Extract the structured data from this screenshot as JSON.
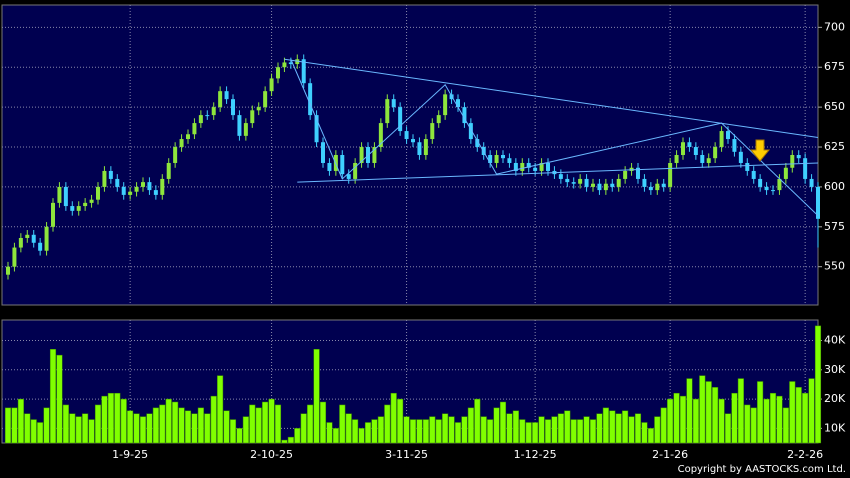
{
  "chart_data": [
    {
      "type": "candlestick",
      "categories": [
        null,
        null,
        null,
        null,
        null,
        null,
        null,
        null,
        null,
        null,
        null,
        null,
        null,
        null,
        null,
        null,
        null,
        null,
        null,
        "1-9-25",
        null,
        null,
        null,
        null,
        null,
        null,
        null,
        null,
        null,
        null,
        null,
        null,
        null,
        null,
        null,
        null,
        null,
        null,
        null,
        null,
        null,
        "2-10-25",
        null,
        null,
        null,
        null,
        null,
        null,
        null,
        null,
        null,
        null,
        null,
        null,
        null,
        null,
        null,
        null,
        null,
        null,
        null,
        null,
        "3-11-25",
        null,
        null,
        null,
        null,
        null,
        null,
        null,
        null,
        null,
        null,
        null,
        null,
        null,
        null,
        null,
        null,
        null,
        null,
        null,
        "1-12-25",
        null,
        null,
        null,
        null,
        null,
        null,
        null,
        null,
        null,
        null,
        null,
        null,
        null,
        null,
        null,
        null,
        null,
        null,
        null,
        null,
        "2-1-26",
        null,
        null,
        null,
        null,
        null,
        null,
        null,
        null,
        null,
        null,
        null,
        null,
        null,
        null,
        null,
        null,
        null,
        null,
        null,
        null,
        "2-2-26",
        null,
        null
      ],
      "open": [
        545,
        550,
        562,
        568,
        570,
        565,
        560,
        575,
        590,
        600,
        588,
        585,
        588,
        590,
        592,
        600,
        610,
        605,
        600,
        595,
        597,
        600,
        603,
        598,
        595,
        605,
        615,
        625,
        630,
        633,
        640,
        645,
        645,
        650,
        660,
        655,
        645,
        632,
        640,
        648,
        650,
        660,
        668,
        675,
        678,
        677,
        680,
        665,
        645,
        628,
        615,
        610,
        620,
        608,
        605,
        615,
        625,
        615,
        625,
        640,
        655,
        650,
        635,
        630,
        628,
        620,
        630,
        640,
        645,
        658,
        655,
        650,
        640,
        630,
        625,
        620,
        615,
        620,
        618,
        615,
        610,
        615,
        612,
        610,
        615,
        610,
        608,
        605,
        603,
        602,
        605,
        600,
        602,
        598,
        602,
        600,
        605,
        610,
        612,
        605,
        600,
        598,
        602,
        600,
        615,
        620,
        628,
        625,
        620,
        615,
        618,
        625,
        635,
        630,
        622,
        615,
        610,
        605,
        600,
        598,
        598,
        605,
        612,
        620,
        618,
        605,
        600
      ],
      "high": [
        553,
        565,
        571,
        573,
        573,
        568,
        578,
        593,
        603,
        603,
        591,
        591,
        593,
        595,
        603,
        613,
        613,
        608,
        603,
        600,
        603,
        606,
        606,
        601,
        608,
        618,
        628,
        633,
        636,
        643,
        648,
        648,
        653,
        663,
        663,
        658,
        648,
        643,
        651,
        653,
        663,
        671,
        678,
        681,
        681,
        683,
        683,
        668,
        648,
        631,
        618,
        623,
        623,
        611,
        618,
        628,
        628,
        628,
        643,
        658,
        658,
        653,
        638,
        633,
        631,
        633,
        643,
        648,
        661,
        661,
        658,
        653,
        643,
        633,
        628,
        623,
        623,
        623,
        621,
        618,
        618,
        618,
        615,
        618,
        618,
        613,
        611,
        608,
        606,
        608,
        608,
        605,
        605,
        605,
        605,
        608,
        613,
        615,
        615,
        608,
        603,
        605,
        605,
        618,
        623,
        631,
        631,
        628,
        623,
        621,
        628,
        638,
        638,
        633,
        625,
        618,
        613,
        608,
        603,
        601,
        608,
        615,
        623,
        623,
        621,
        608,
        603
      ],
      "low": [
        542,
        547,
        559,
        565,
        562,
        557,
        557,
        572,
        587,
        585,
        582,
        582,
        585,
        587,
        589,
        597,
        602,
        597,
        592,
        592,
        594,
        597,
        595,
        592,
        592,
        602,
        612,
        622,
        627,
        630,
        637,
        642,
        642,
        647,
        652,
        642,
        629,
        629,
        637,
        645,
        647,
        657,
        665,
        672,
        674,
        674,
        662,
        642,
        625,
        612,
        607,
        607,
        605,
        602,
        602,
        612,
        612,
        612,
        622,
        637,
        647,
        632,
        627,
        625,
        617,
        617,
        627,
        637,
        642,
        652,
        647,
        637,
        627,
        622,
        617,
        612,
        612,
        615,
        612,
        607,
        607,
        609,
        607,
        607,
        607,
        605,
        602,
        600,
        599,
        599,
        597,
        597,
        595,
        595,
        597,
        597,
        602,
        607,
        602,
        597,
        595,
        595,
        597,
        597,
        612,
        617,
        622,
        617,
        612,
        612,
        615,
        622,
        627,
        619,
        612,
        607,
        602,
        597,
        595,
        595,
        595,
        602,
        609,
        615,
        602,
        597,
        562
      ],
      "close": [
        550,
        562,
        568,
        570,
        565,
        560,
        575,
        590,
        600,
        588,
        585,
        588,
        590,
        592,
        600,
        610,
        605,
        600,
        595,
        597,
        600,
        603,
        598,
        595,
        605,
        615,
        625,
        630,
        633,
        640,
        645,
        645,
        650,
        660,
        655,
        645,
        632,
        640,
        648,
        650,
        660,
        668,
        675,
        678,
        677,
        680,
        665,
        645,
        628,
        615,
        610,
        620,
        608,
        605,
        615,
        625,
        615,
        625,
        640,
        655,
        650,
        635,
        630,
        628,
        620,
        630,
        640,
        645,
        658,
        655,
        650,
        640,
        630,
        625,
        620,
        615,
        620,
        618,
        615,
        610,
        615,
        612,
        610,
        615,
        610,
        608,
        605,
        603,
        602,
        605,
        600,
        602,
        598,
        602,
        600,
        605,
        610,
        612,
        605,
        600,
        598,
        602,
        600,
        615,
        620,
        628,
        625,
        620,
        615,
        618,
        625,
        635,
        630,
        622,
        615,
        610,
        605,
        600,
        598,
        598,
        605,
        612,
        620,
        618,
        605,
        600,
        580
      ],
      "up_color": "#8ee63c",
      "down_color": "#3fd0ff",
      "ylim": [
        526,
        714
      ],
      "yticks": [
        550,
        575,
        600,
        625,
        650,
        675,
        700
      ],
      "grid": true,
      "trendlines": [
        {
          "color": "#6ab8ff",
          "points": [
            [
              43,
              680
            ],
            [
              126,
              631
            ]
          ]
        },
        {
          "color": "#6ab8ff",
          "points": [
            [
              45,
              603
            ],
            [
              126,
              615
            ]
          ]
        },
        {
          "color": "#6ab8ff",
          "points": [
            [
              44,
              680
            ],
            [
              52,
              605
            ],
            [
              68,
              664
            ],
            [
              76,
              608
            ],
            [
              111,
              640
            ],
            [
              126,
              582
            ]
          ]
        }
      ]
    },
    {
      "type": "bar",
      "values": [
        17000,
        17000,
        20000,
        15000,
        13000,
        12000,
        17000,
        37000,
        35000,
        18000,
        15000,
        14000,
        15000,
        13000,
        18000,
        21000,
        22000,
        22000,
        20000,
        16000,
        15000,
        14000,
        15000,
        17000,
        18000,
        20000,
        19000,
        17000,
        16000,
        15000,
        17000,
        15000,
        21000,
        28000,
        16000,
        13000,
        10000,
        14000,
        18000,
        17000,
        19000,
        20000,
        18000,
        6000,
        7000,
        10000,
        15000,
        18000,
        37000,
        19000,
        12000,
        10000,
        18000,
        15000,
        13000,
        10000,
        12000,
        13000,
        14000,
        18000,
        22000,
        20000,
        14000,
        13000,
        13000,
        13000,
        14000,
        13000,
        15000,
        14000,
        12000,
        14000,
        17000,
        20000,
        14000,
        13000,
        17000,
        19000,
        15000,
        16000,
        13000,
        12000,
        12000,
        14000,
        13000,
        14000,
        15000,
        16000,
        13000,
        13000,
        14000,
        13000,
        15000,
        17000,
        16000,
        15000,
        16000,
        14000,
        15000,
        12000,
        10000,
        14000,
        17000,
        20000,
        22000,
        21000,
        27000,
        20000,
        28000,
        26000,
        24000,
        20000,
        15000,
        22000,
        27000,
        18000,
        17000,
        26000,
        20000,
        22000,
        21000,
        17000,
        26000,
        24000,
        22000,
        27000,
        45000
      ],
      "color": "#80ff00",
      "ylim": [
        5000,
        47000
      ],
      "yticks": [
        {
          "value": 10000,
          "label": "10K"
        },
        {
          "value": 20000,
          "label": "20K"
        },
        {
          "value": 30000,
          "label": "30K"
        },
        {
          "value": 40000,
          "label": "40K"
        }
      ],
      "grid": true
    }
  ],
  "footer": "Copyright by AASTOCKS.com Ltd."
}
